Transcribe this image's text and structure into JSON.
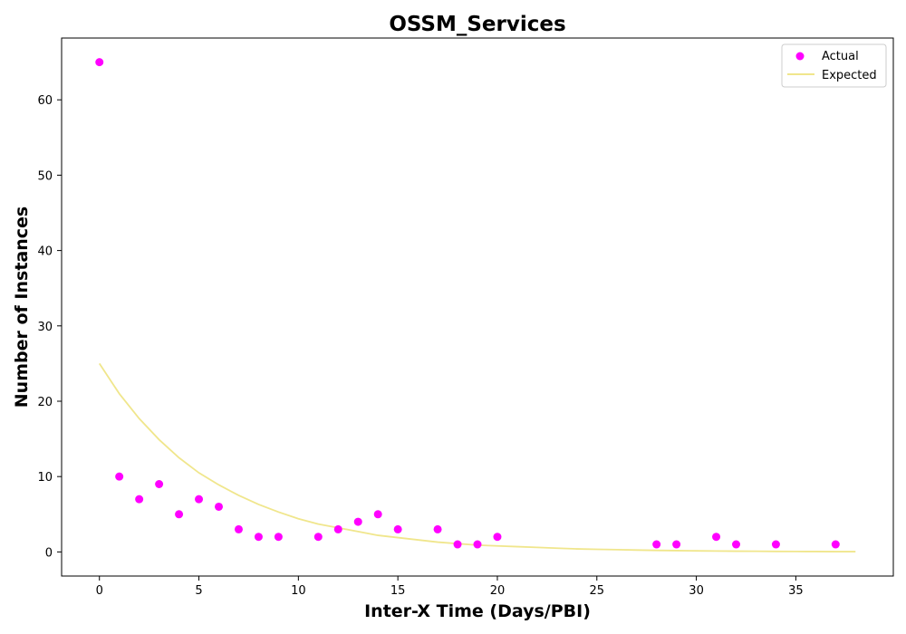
{
  "chart_data": {
    "type": "scatter",
    "title": "OSSM_Services",
    "xlabel": "Inter-X Time (Days/PBI)",
    "ylabel": "Number of Instances",
    "xlim": [
      -1.9,
      39.9
    ],
    "ylim": [
      -3.2,
      68.2
    ],
    "xticks": [
      0,
      5,
      10,
      15,
      20,
      25,
      30,
      35
    ],
    "yticks": [
      0,
      10,
      20,
      30,
      40,
      50,
      60
    ],
    "grid": false,
    "legend_position": "top-right",
    "series": [
      {
        "name": "Actual",
        "kind": "scatter",
        "color": "#ff00ff",
        "points": [
          [
            0,
            65
          ],
          [
            1,
            10
          ],
          [
            2,
            7
          ],
          [
            3,
            9
          ],
          [
            4,
            5
          ],
          [
            5,
            7
          ],
          [
            6,
            6
          ],
          [
            7,
            3
          ],
          [
            8,
            2
          ],
          [
            9,
            2
          ],
          [
            11,
            2
          ],
          [
            12,
            3
          ],
          [
            13,
            4
          ],
          [
            14,
            5
          ],
          [
            15,
            3
          ],
          [
            17,
            3
          ],
          [
            18,
            1
          ],
          [
            19,
            1
          ],
          [
            20,
            2
          ],
          [
            28,
            1
          ],
          [
            29,
            1
          ],
          [
            31,
            2
          ],
          [
            32,
            1
          ],
          [
            34,
            1
          ],
          [
            37,
            1
          ]
        ]
      },
      {
        "name": "Expected",
        "kind": "line",
        "color": "#f0e68c",
        "x": [
          0,
          1,
          2,
          3,
          4,
          5,
          6,
          7,
          8,
          9,
          10,
          11,
          12,
          13,
          14,
          15,
          16,
          17,
          18,
          19,
          20,
          21,
          22,
          23,
          24,
          25,
          26,
          27,
          28,
          29,
          30,
          31,
          32,
          33,
          34,
          35,
          36,
          37,
          38
        ],
        "y": [
          25.0,
          21.0,
          17.7,
          14.9,
          12.5,
          10.5,
          8.9,
          7.5,
          6.3,
          5.3,
          4.4,
          3.7,
          3.2,
          2.7,
          2.2,
          1.9,
          1.6,
          1.3,
          1.1,
          0.9,
          0.8,
          0.7,
          0.6,
          0.5,
          0.4,
          0.35,
          0.3,
          0.25,
          0.2,
          0.17,
          0.14,
          0.12,
          0.1,
          0.09,
          0.07,
          0.06,
          0.05,
          0.04,
          0.04
        ]
      }
    ]
  }
}
